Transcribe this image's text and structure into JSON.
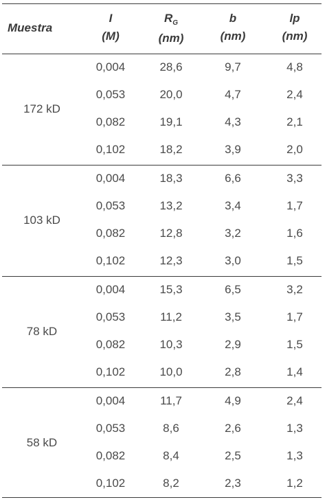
{
  "headers": {
    "muestra": "Muestra",
    "i_symbol": "I",
    "i_unit": "(M)",
    "rg_symbol": "R",
    "rg_sub": "G",
    "rg_unit": "(nm)",
    "b_symbol": "b",
    "b_unit": "(nm)",
    "lp_symbol": "lp",
    "lp_unit": "(nm)"
  },
  "groups": [
    {
      "sample": "172 kD",
      "rows": [
        {
          "i": "0,004",
          "rg": "28,6",
          "b": "9,7",
          "lp": "4,8"
        },
        {
          "i": "0,053",
          "rg": "20,0",
          "b": "4,7",
          "lp": "2,4"
        },
        {
          "i": "0,082",
          "rg": "19,1",
          "b": "4,3",
          "lp": "2,1"
        },
        {
          "i": "0,102",
          "rg": "18,2",
          "b": "3,9",
          "lp": "2,0"
        }
      ]
    },
    {
      "sample": "103 kD",
      "rows": [
        {
          "i": "0,004",
          "rg": "18,3",
          "b": "6,6",
          "lp": "3,3"
        },
        {
          "i": "0,053",
          "rg": "13,2",
          "b": "3,4",
          "lp": "1,7"
        },
        {
          "i": "0,082",
          "rg": "12,8",
          "b": "3,2",
          "lp": "1,6"
        },
        {
          "i": "0,102",
          "rg": "12,3",
          "b": "3,0",
          "lp": "1,5"
        }
      ]
    },
    {
      "sample": "78 kD",
      "rows": [
        {
          "i": "0,004",
          "rg": "15,3",
          "b": "6,5",
          "lp": "3,2"
        },
        {
          "i": "0,053",
          "rg": "11,2",
          "b": "3,5",
          "lp": "1,7"
        },
        {
          "i": "0,082",
          "rg": "10,3",
          "b": "2,9",
          "lp": "1,5"
        },
        {
          "i": "0,102",
          "rg": "10,0",
          "b": "2,8",
          "lp": "1,4"
        }
      ]
    },
    {
      "sample": "58 kD",
      "rows": [
        {
          "i": "0,004",
          "rg": "11,7",
          "b": "4,9",
          "lp": "2,4"
        },
        {
          "i": "0,053",
          "rg": "8,6",
          "b": "2,6",
          "lp": "1,3"
        },
        {
          "i": "0,082",
          "rg": "8,4",
          "b": "2,5",
          "lp": "1,3"
        },
        {
          "i": "0,102",
          "rg": "8,2",
          "b": "2,3",
          "lp": "1,2"
        }
      ]
    }
  ]
}
